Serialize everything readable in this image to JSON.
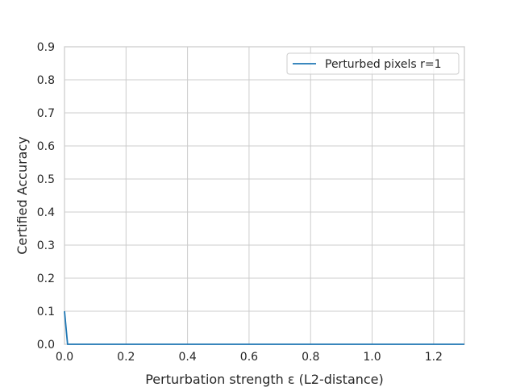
{
  "chart_data": {
    "type": "line",
    "xlabel": "Perturbation strength ε (L2-distance)",
    "ylabel": "Certified Accuracy",
    "xlim": [
      0,
      1.3
    ],
    "ylim": [
      0,
      0.9
    ],
    "x_ticks": [
      0.0,
      0.2,
      0.4,
      0.6,
      0.8,
      1.0,
      1.2
    ],
    "x_tick_labels": [
      "0.0",
      "0.2",
      "0.4",
      "0.6",
      "0.8",
      "1.0",
      "1.2"
    ],
    "y_ticks": [
      0.0,
      0.1,
      0.2,
      0.3,
      0.4,
      0.5,
      0.6,
      0.7,
      0.8,
      0.9
    ],
    "y_tick_labels": [
      "0.0",
      "0.1",
      "0.2",
      "0.3",
      "0.4",
      "0.5",
      "0.6",
      "0.7",
      "0.8",
      "0.9"
    ],
    "grid": true,
    "legend_position": "top-right",
    "series": [
      {
        "name": "Perturbed pixels r=1",
        "color": "#1f77b4",
        "x": [
          0.0,
          0.01,
          1.3
        ],
        "y": [
          0.1,
          0.0,
          0.0
        ]
      }
    ]
  }
}
